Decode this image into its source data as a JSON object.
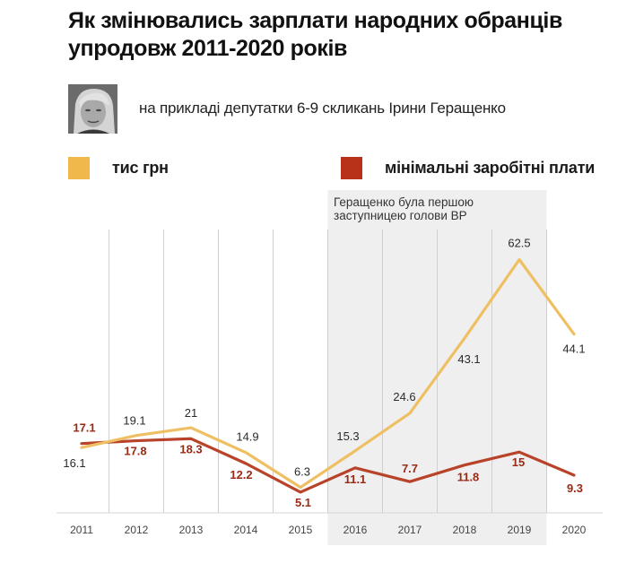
{
  "header": {
    "title_line1": "Як змінювались зарплати народних обранців",
    "title_line2": "упродовж 2011-2020 років",
    "subtitle": "на прикладі депутатки 6-9 скликань Ірини Геращенко",
    "avatar_alt": "portrait-photo"
  },
  "legend": [
    {
      "label": "тис грн",
      "color": "#f0b84a"
    },
    {
      "label": "мінімальні заробітні плати",
      "color": "#b8321a"
    }
  ],
  "colors": {
    "salary_line": "#eec063",
    "minwage_line": "#b8432a",
    "salary_label": "#2a2a2a",
    "minwage_label": "#9a2a16",
    "shade": "#efefef",
    "grid": "#cfcfcf"
  },
  "chart_data": {
    "type": "line",
    "title": "Як змінювались зарплати народних обранців упродовж 2011-2020 років",
    "xlabel": "",
    "ylabel": "",
    "categories": [
      "2011",
      "2012",
      "2013",
      "2014",
      "2015",
      "2016",
      "2017",
      "2018",
      "2019",
      "2020"
    ],
    "series": [
      {
        "name": "тис грн",
        "values": [
          16.1,
          19.1,
          21,
          14.9,
          6.3,
          15.3,
          24.6,
          43.1,
          62.5,
          44.1
        ]
      },
      {
        "name": "мінімальні заробітні плати",
        "values": [
          17.1,
          17.8,
          18.3,
          12.2,
          5.1,
          11.1,
          7.7,
          11.8,
          15,
          9.3
        ]
      }
    ],
    "ylim": [
      0,
      70
    ],
    "grid": "vertical",
    "legend_position": "top",
    "highlight": {
      "from": "2016",
      "to": "2019",
      "annotation": "Геращенко була першою заступницею голови ВР"
    }
  }
}
